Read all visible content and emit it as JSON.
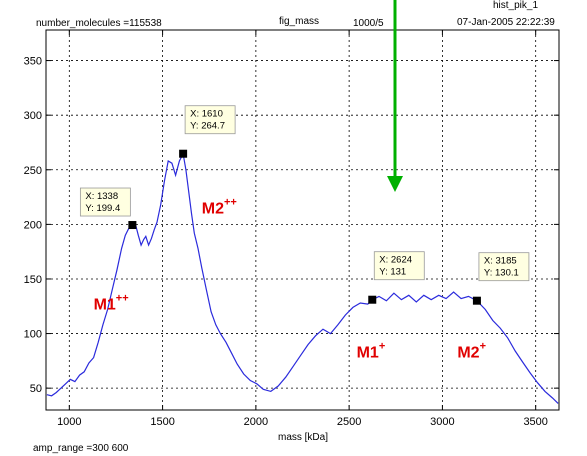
{
  "header": {
    "molecules": "number_molecules =115538",
    "fig_name": "fig_mass",
    "ratio": "1000/5",
    "hist_name": "hist_pik_1",
    "date": "07-Jan-2005 22:22:39"
  },
  "footer": {
    "amp_range": "amp_range =300  600"
  },
  "colors": {
    "line": "#2b2bdc",
    "arrow": "#00b000",
    "peak_label": "#e00000",
    "tip_bg": "#ffffe1"
  },
  "chart_data": {
    "type": "line",
    "title": "",
    "xlabel": "mass [kDa]",
    "ylabel": "",
    "xlim": [
      875,
      3625
    ],
    "ylim": [
      30,
      378
    ],
    "x_ticks": [
      1000,
      1500,
      2000,
      2500,
      3000,
      3500
    ],
    "y_ticks": [
      50,
      100,
      150,
      200,
      250,
      300,
      350
    ],
    "x_tick_labels": [
      "1000",
      "1500",
      "2000",
      "2500",
      "3000",
      "3500"
    ],
    "y_tick_labels": [
      "50",
      "100",
      "150",
      "200",
      "250",
      "300",
      "350"
    ],
    "grid": true,
    "series": [
      {
        "x": [
          880,
          905,
          930,
          955,
          980,
          1005,
          1030,
          1055,
          1080,
          1105,
          1130,
          1155,
          1180,
          1205,
          1230,
          1255,
          1280,
          1300,
          1318,
          1338,
          1355,
          1370,
          1385,
          1398,
          1410,
          1425,
          1440,
          1455,
          1470,
          1490,
          1510,
          1530,
          1550,
          1570,
          1590,
          1610,
          1625,
          1640,
          1655,
          1670,
          1690,
          1710,
          1735,
          1760,
          1785,
          1810,
          1840,
          1870,
          1900,
          1935,
          1970,
          2005,
          2040,
          2080,
          2120,
          2160,
          2200,
          2240,
          2280,
          2320,
          2360,
          2400,
          2440,
          2480,
          2520,
          2560,
          2600,
          2624,
          2660,
          2700,
          2740,
          2780,
          2820,
          2860,
          2900,
          2940,
          2980,
          3020,
          3060,
          3100,
          3140,
          3185,
          3230,
          3270,
          3310,
          3350,
          3390,
          3430,
          3470,
          3510,
          3550,
          3590,
          3620
        ],
        "y": [
          44,
          43,
          46,
          50,
          54,
          58,
          56,
          62,
          65,
          73,
          78,
          92,
          108,
          122,
          140,
          158,
          178,
          190,
          196,
          199.4,
          200,
          190,
          181,
          186,
          189,
          181,
          187,
          195,
          202,
          218,
          240,
          258,
          256,
          245,
          258,
          264.7,
          250,
          230,
          210,
          192,
          178,
          160,
          140,
          120,
          108,
          100,
          92,
          82,
          72,
          63,
          57,
          54,
          49,
          47,
          52,
          60,
          70,
          80,
          90,
          98,
          104,
          100,
          108,
          117,
          124,
          128,
          127,
          131,
          134,
          130,
          137,
          131,
          135,
          129,
          135,
          131,
          135,
          132,
          138,
          132,
          134,
          130.1,
          122,
          112,
          105,
          96,
          84,
          74,
          64,
          55,
          47,
          41,
          36
        ]
      }
    ],
    "datatips": [
      {
        "x": 1338,
        "y": 199.4,
        "x_label": "X: 1338",
        "y_label": "Y: 199.4"
      },
      {
        "x": 1610,
        "y": 264.7,
        "x_label": "X: 1610",
        "y_label": "Y: 264.7"
      },
      {
        "x": 2624,
        "y": 131,
        "x_label": "X: 2624",
        "y_label": "Y: 131"
      },
      {
        "x": 3185,
        "y": 130.1,
        "x_label": "X: 3185",
        "y_label": "Y: 130.1"
      }
    ],
    "annotations": [
      {
        "text": "M1",
        "sup": "++",
        "x": 1130,
        "y": 122
      },
      {
        "text": "M2",
        "sup": "++",
        "x": 1710,
        "y": 210
      },
      {
        "text": "M1",
        "sup": "+",
        "x": 2540,
        "y": 78
      },
      {
        "text": "M2",
        "sup": "+",
        "x": 3080,
        "y": 78
      }
    ]
  }
}
